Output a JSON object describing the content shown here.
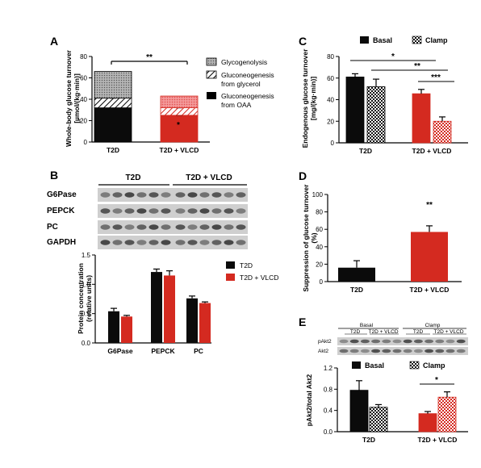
{
  "colors": {
    "black": "#0b0b0b",
    "red": "#d42a20",
    "pink": "#f07a7a",
    "grey": "#9a9a9a",
    "blot_bg": "#cfcfcf",
    "band": "#3a3a3a"
  },
  "panels": {
    "A": {
      "label": "A",
      "ylabel_line1": "Whole-body glucose turnover",
      "ylabel_line2": "[µmol/(kg·min)]",
      "legend": [
        "Glycogenolysis",
        "Gluconeogenesis\nfrom glycerol",
        "Gluconeogenesis\nfrom OAA"
      ],
      "sig_bracket": "**",
      "sig_bar": "*"
    },
    "B": {
      "label": "B",
      "blot_group_labels": [
        "T2D",
        "T2D + VLCD"
      ],
      "blot_rows": [
        "G6Pase",
        "PEPCK",
        "PC",
        "GAPDH"
      ],
      "ylabel_line1": "Protein concentration",
      "ylabel_line2": "(relative units)",
      "legend": [
        "T2D",
        "T2D + VLCD"
      ]
    },
    "C": {
      "label": "C",
      "ylabel_line1": "Endogenous glucose turnover",
      "ylabel_line2": "[mg/(kg·min)]",
      "legend": [
        "Basal",
        "Clamp"
      ],
      "sigs": [
        "*",
        "**",
        "***"
      ]
    },
    "D": {
      "label": "D",
      "ylabel_line1": "Suppression of glucose turnover",
      "ylabel_line2": "(%)",
      "sig": "**"
    },
    "E": {
      "label": "E",
      "blot_headers": [
        "Basal",
        "Clamp"
      ],
      "blot_sub": [
        "T2D",
        "T2D + VLCD",
        "T2D",
        "T2D + VLCD"
      ],
      "blot_rows": [
        "pAkt2",
        "Akt2"
      ],
      "ylabel": "pAkt2/total Akt2",
      "legend": [
        "Basal",
        "Clamp"
      ],
      "sig": "*"
    }
  },
  "chart_data": [
    {
      "panel": "A",
      "type": "bar",
      "stacked": true,
      "categories": [
        "T2D",
        "T2D + VLCD"
      ],
      "ylim": [
        0,
        80
      ],
      "yticks": [
        0,
        20,
        40,
        60,
        80
      ],
      "series": [
        {
          "name": "Gluconeogenesis from OAA",
          "values": [
            32,
            25
          ],
          "err": [
            0,
            2
          ]
        },
        {
          "name": "Gluconeogenesis from glycerol",
          "values": [
            9,
            7
          ],
          "err": [
            2.5,
            2
          ]
        },
        {
          "name": "Glycogenolysis",
          "values": [
            25,
            11
          ],
          "err": [
            0,
            0
          ]
        }
      ]
    },
    {
      "panel": "B",
      "type": "bar",
      "categories": [
        "G6Pase",
        "PEPCK",
        "PC"
      ],
      "ylim": [
        0,
        1.5
      ],
      "yticks": [
        0.0,
        0.5,
        1.0,
        1.5
      ],
      "series": [
        {
          "name": "T2D",
          "values": [
            0.54,
            1.21,
            0.76
          ],
          "err": [
            0.05,
            0.05,
            0.04
          ]
        },
        {
          "name": "T2D + VLCD",
          "values": [
            0.45,
            1.15,
            0.68
          ],
          "err": [
            0.02,
            0.08,
            0.02
          ]
        }
      ]
    },
    {
      "panel": "C",
      "type": "bar",
      "categories": [
        "T2D",
        "T2D + VLCD"
      ],
      "ylim": [
        0,
        80
      ],
      "yticks": [
        0,
        20,
        40,
        60,
        80
      ],
      "series": [
        {
          "name": "Basal",
          "values": [
            61,
            45.5
          ],
          "err": [
            3,
            4
          ]
        },
        {
          "name": "Clamp",
          "values": [
            52,
            20
          ],
          "err": [
            7,
            4
          ]
        }
      ]
    },
    {
      "panel": "D",
      "type": "bar",
      "categories": [
        "T2D",
        "T2D + VLCD"
      ],
      "ylim": [
        0,
        100
      ],
      "yticks": [
        0,
        20,
        40,
        60,
        80,
        100
      ],
      "series": [
        {
          "name": "Suppression",
          "values": [
            16,
            57
          ],
          "err": [
            8,
            7
          ]
        }
      ]
    },
    {
      "panel": "E",
      "type": "bar",
      "categories": [
        "T2D",
        "T2D + VLCD"
      ],
      "ylim": [
        0,
        1.2
      ],
      "yticks": [
        0.0,
        0.4,
        0.8,
        1.2
      ],
      "series": [
        {
          "name": "Basal",
          "values": [
            0.78,
            0.34
          ],
          "err": [
            0.18,
            0.04
          ]
        },
        {
          "name": "Clamp",
          "values": [
            0.46,
            0.65
          ],
          "err": [
            0.05,
            0.1
          ]
        }
      ]
    }
  ]
}
